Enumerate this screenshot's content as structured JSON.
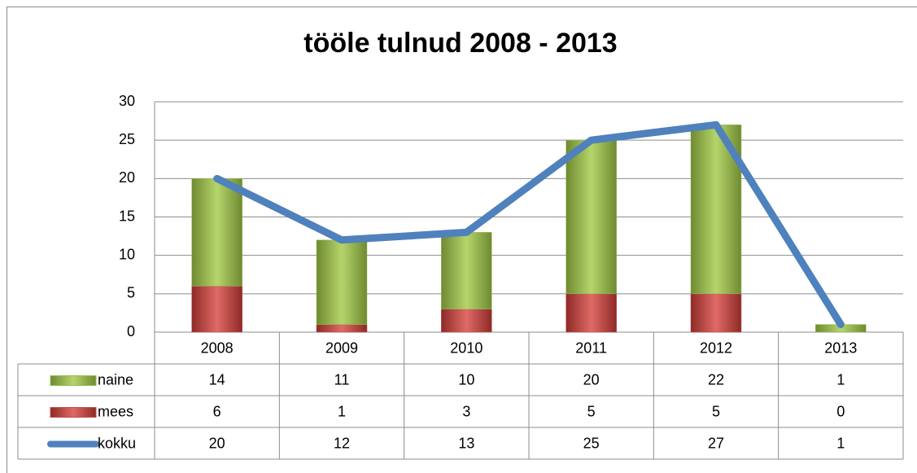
{
  "chart_data": {
    "type": "bar",
    "stacked": true,
    "title": "tööle tulnud 2008 - 2013",
    "categories": [
      "2008",
      "2009",
      "2010",
      "2011",
      "2012",
      "2013"
    ],
    "series": [
      {
        "name": "naine",
        "color": "#9bbb59",
        "values": [
          14,
          11,
          10,
          20,
          22,
          1
        ]
      },
      {
        "name": "mees",
        "color": "#c0504d",
        "values": [
          6,
          1,
          3,
          5,
          5,
          0
        ]
      },
      {
        "name": "kokku",
        "color": "#4f81bd",
        "type": "line",
        "values": [
          20,
          12,
          13,
          25,
          27,
          1
        ]
      }
    ],
    "ylim": [
      0,
      30
    ],
    "yticks": [
      0,
      5,
      10,
      15,
      20,
      25,
      30
    ],
    "grid": true,
    "data_table": true
  }
}
